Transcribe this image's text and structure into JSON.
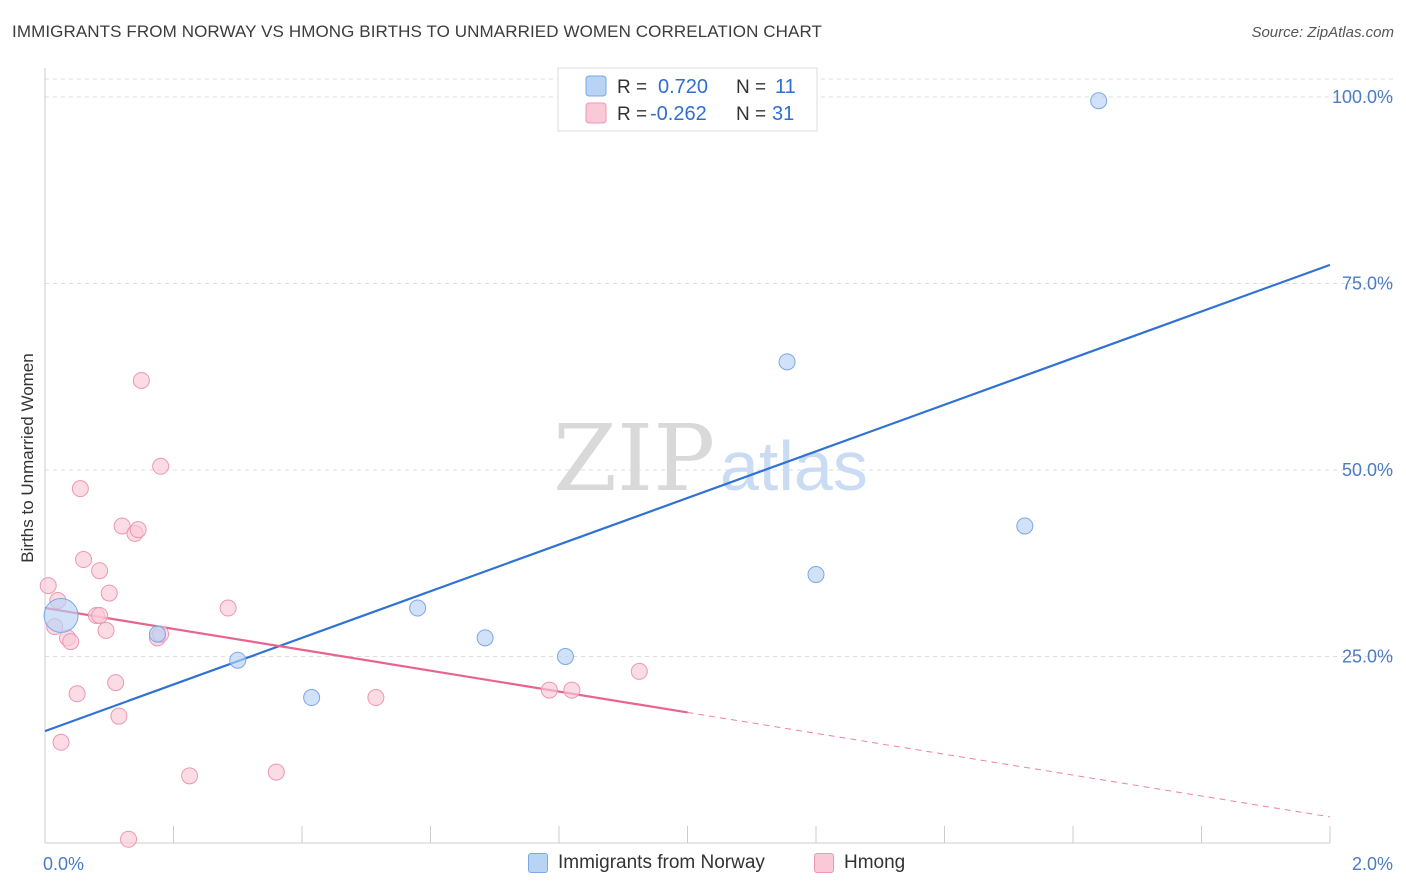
{
  "header": {
    "title": "IMMIGRANTS FROM NORWAY VS HMONG BIRTHS TO UNMARRIED WOMEN CORRELATION CHART",
    "source": "Source: ZipAtlas.com"
  },
  "watermark": {
    "zip": "ZIP",
    "atlas": "atlas"
  },
  "colors": {
    "norway_fill": "#b9d3f5",
    "norway_stroke": "#7aa7e8",
    "norway_line": "#2f72d3",
    "hmong_fill": "#f9c9d7",
    "hmong_stroke": "#ee96b2",
    "hmong_line": "#e8638e",
    "tick_text": "#4a7bc6",
    "grid": "#dcdcdc"
  },
  "legend": {
    "rows": [
      {
        "series": "norway",
        "r_label": "R =",
        "r_value": "0.720",
        "n_label": "N =",
        "n_value": "11"
      },
      {
        "series": "hmong",
        "r_label": "R =",
        "r_value": "-0.262",
        "n_label": "N =",
        "n_value": "31"
      }
    ]
  },
  "bottom_legend": {
    "norway": "Immigrants from Norway",
    "hmong": "Hmong"
  },
  "chart_data": {
    "type": "scatter",
    "title": "IMMIGRANTS FROM NORWAY VS HMONG BIRTHS TO UNMARRIED WOMEN CORRELATION CHART",
    "xlabel": "",
    "ylabel": "Births to Unmarried Women",
    "xlim": [
      0,
      2.0
    ],
    "ylim": [
      0,
      100
    ],
    "x_tick_labels": [
      "0.0%",
      "2.0%"
    ],
    "y_ticks": [
      25,
      50,
      75,
      100
    ],
    "y_tick_labels": [
      "25.0%",
      "50.0%",
      "75.0%",
      "100.0%"
    ],
    "grid": true,
    "series": [
      {
        "name": "Immigrants from Norway",
        "key": "norway",
        "points": [
          {
            "x": 0.025,
            "y": 30.5,
            "big": true
          },
          {
            "x": 0.175,
            "y": 28.0
          },
          {
            "x": 0.3,
            "y": 24.5
          },
          {
            "x": 0.415,
            "y": 19.5
          },
          {
            "x": 0.58,
            "y": 31.5
          },
          {
            "x": 0.685,
            "y": 27.5
          },
          {
            "x": 0.81,
            "y": 25.0
          },
          {
            "x": 1.155,
            "y": 64.5
          },
          {
            "x": 1.2,
            "y": 36.0
          },
          {
            "x": 1.525,
            "y": 42.5
          },
          {
            "x": 1.64,
            "y": 99.5
          }
        ],
        "trend": {
          "x0": 0.0,
          "y0": 15.0,
          "x1": 2.0,
          "y1": 77.5,
          "solid_to": 2.0
        }
      },
      {
        "name": "Hmong",
        "key": "hmong",
        "points": [
          {
            "x": 0.005,
            "y": 34.5
          },
          {
            "x": 0.015,
            "y": 29.0
          },
          {
            "x": 0.02,
            "y": 32.5
          },
          {
            "x": 0.025,
            "y": 13.5
          },
          {
            "x": 0.035,
            "y": 27.5
          },
          {
            "x": 0.04,
            "y": 27.0
          },
          {
            "x": 0.05,
            "y": 20.0
          },
          {
            "x": 0.055,
            "y": 47.5
          },
          {
            "x": 0.06,
            "y": 38.0
          },
          {
            "x": 0.08,
            "y": 30.5
          },
          {
            "x": 0.085,
            "y": 30.5
          },
          {
            "x": 0.085,
            "y": 36.5
          },
          {
            "x": 0.095,
            "y": 28.5
          },
          {
            "x": 0.1,
            "y": 33.5
          },
          {
            "x": 0.11,
            "y": 21.5
          },
          {
            "x": 0.115,
            "y": 17.0
          },
          {
            "x": 0.12,
            "y": 42.5
          },
          {
            "x": 0.13,
            "y": 0.5
          },
          {
            "x": 0.14,
            "y": 41.5
          },
          {
            "x": 0.145,
            "y": 42.0
          },
          {
            "x": 0.15,
            "y": 62.0
          },
          {
            "x": 0.175,
            "y": 27.5
          },
          {
            "x": 0.18,
            "y": 50.5
          },
          {
            "x": 0.225,
            "y": 9.0
          },
          {
            "x": 0.285,
            "y": 31.5
          },
          {
            "x": 0.36,
            "y": 9.5
          },
          {
            "x": 0.515,
            "y": 19.5
          },
          {
            "x": 0.785,
            "y": 20.5
          },
          {
            "x": 0.82,
            "y": 20.5
          },
          {
            "x": 0.925,
            "y": 23.0
          },
          {
            "x": 0.18,
            "y": 28.0
          }
        ],
        "trend": {
          "x0": 0.0,
          "y0": 31.5,
          "x1": 2.0,
          "y1": 3.5,
          "solid_to": 1.0
        }
      }
    ]
  }
}
